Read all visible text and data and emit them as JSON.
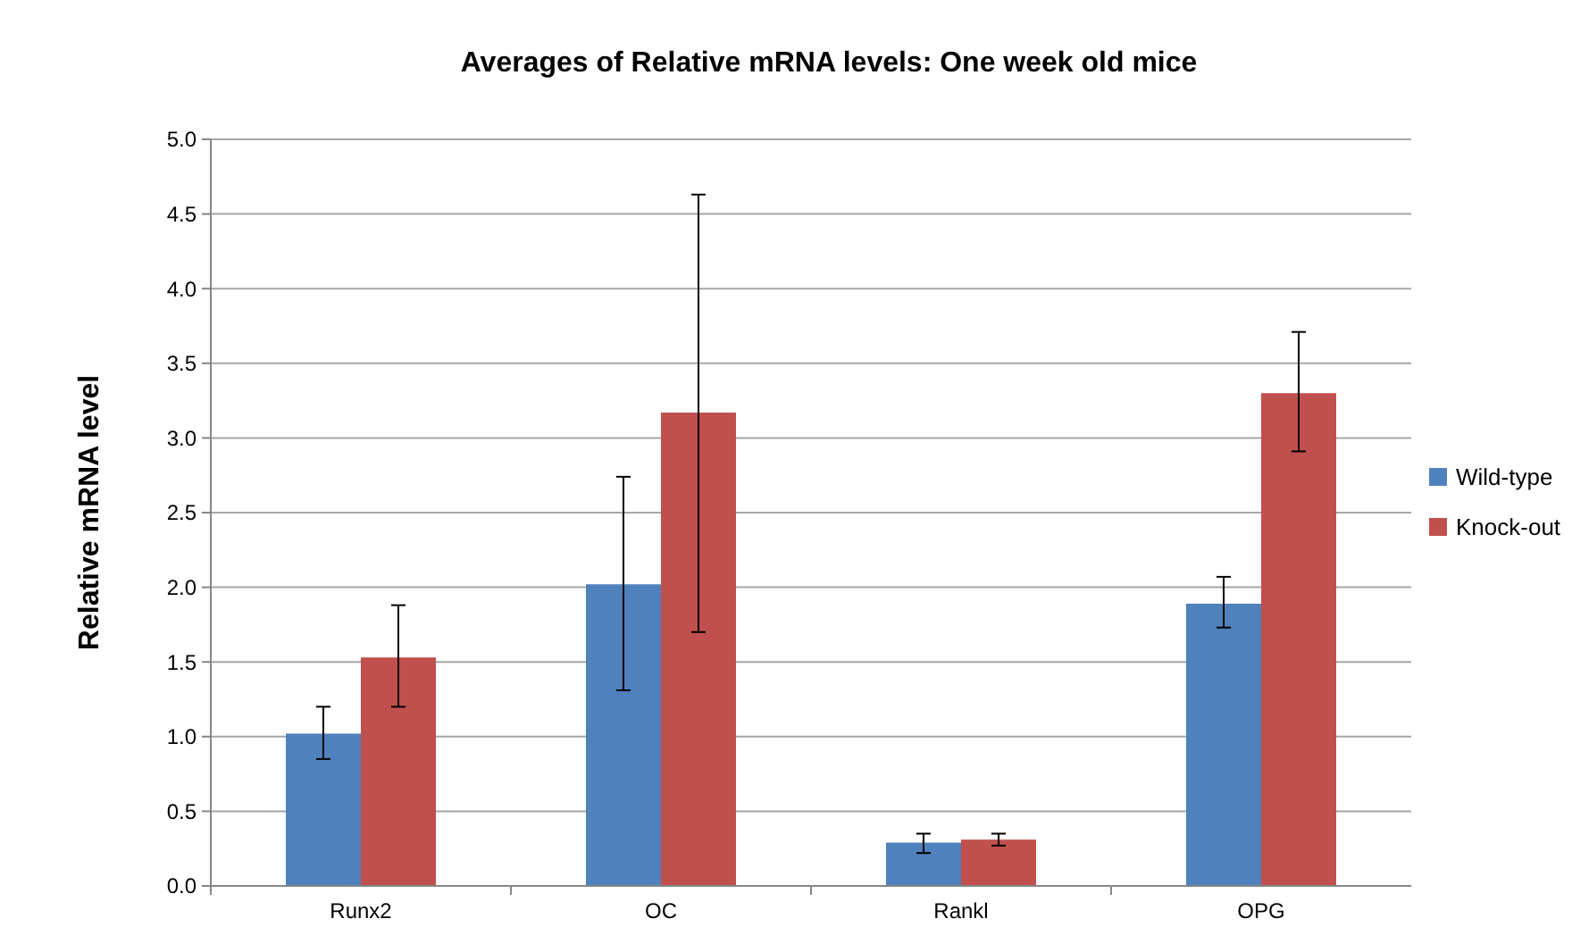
{
  "chart_data": {
    "type": "bar",
    "title": "Averages of Relative mRNA levels: One week old mice",
    "ylabel": "Relative mRNA level",
    "categories": [
      "Runx2",
      "OC",
      "Rankl",
      "OPG"
    ],
    "series": [
      {
        "name": "Wild-type",
        "color": "#4f81bd",
        "values": [
          1.02,
          2.02,
          0.29,
          1.89
        ],
        "errors": [
          [
            0.85,
            1.2
          ],
          [
            1.31,
            2.74
          ],
          [
            0.22,
            0.35
          ],
          [
            1.73,
            2.07
          ]
        ]
      },
      {
        "name": "Knock-out",
        "color": "#c0504d",
        "values": [
          1.53,
          3.17,
          0.31,
          3.3
        ],
        "errors": [
          [
            1.2,
            1.88
          ],
          [
            1.7,
            4.63
          ],
          [
            0.27,
            0.35
          ],
          [
            2.91,
            3.71
          ]
        ]
      }
    ],
    "ylim": [
      0,
      5
    ],
    "yticks": [
      {
        "value": 0,
        "label": "0.0"
      },
      {
        "value": 0.5,
        "label": "0.5"
      },
      {
        "value": 1,
        "label": "1.0"
      },
      {
        "value": 1.5,
        "label": "1.5"
      },
      {
        "value": 2,
        "label": "2.0"
      },
      {
        "value": 2.5,
        "label": "2.5"
      },
      {
        "value": 3,
        "label": "3.0"
      },
      {
        "value": 3.5,
        "label": "3.5"
      },
      {
        "value": 4,
        "label": "4.0"
      },
      {
        "value": 4.5,
        "label": "4.5"
      },
      {
        "value": 5,
        "label": "5.0"
      }
    ],
    "grid": "y",
    "legend": "right"
  }
}
